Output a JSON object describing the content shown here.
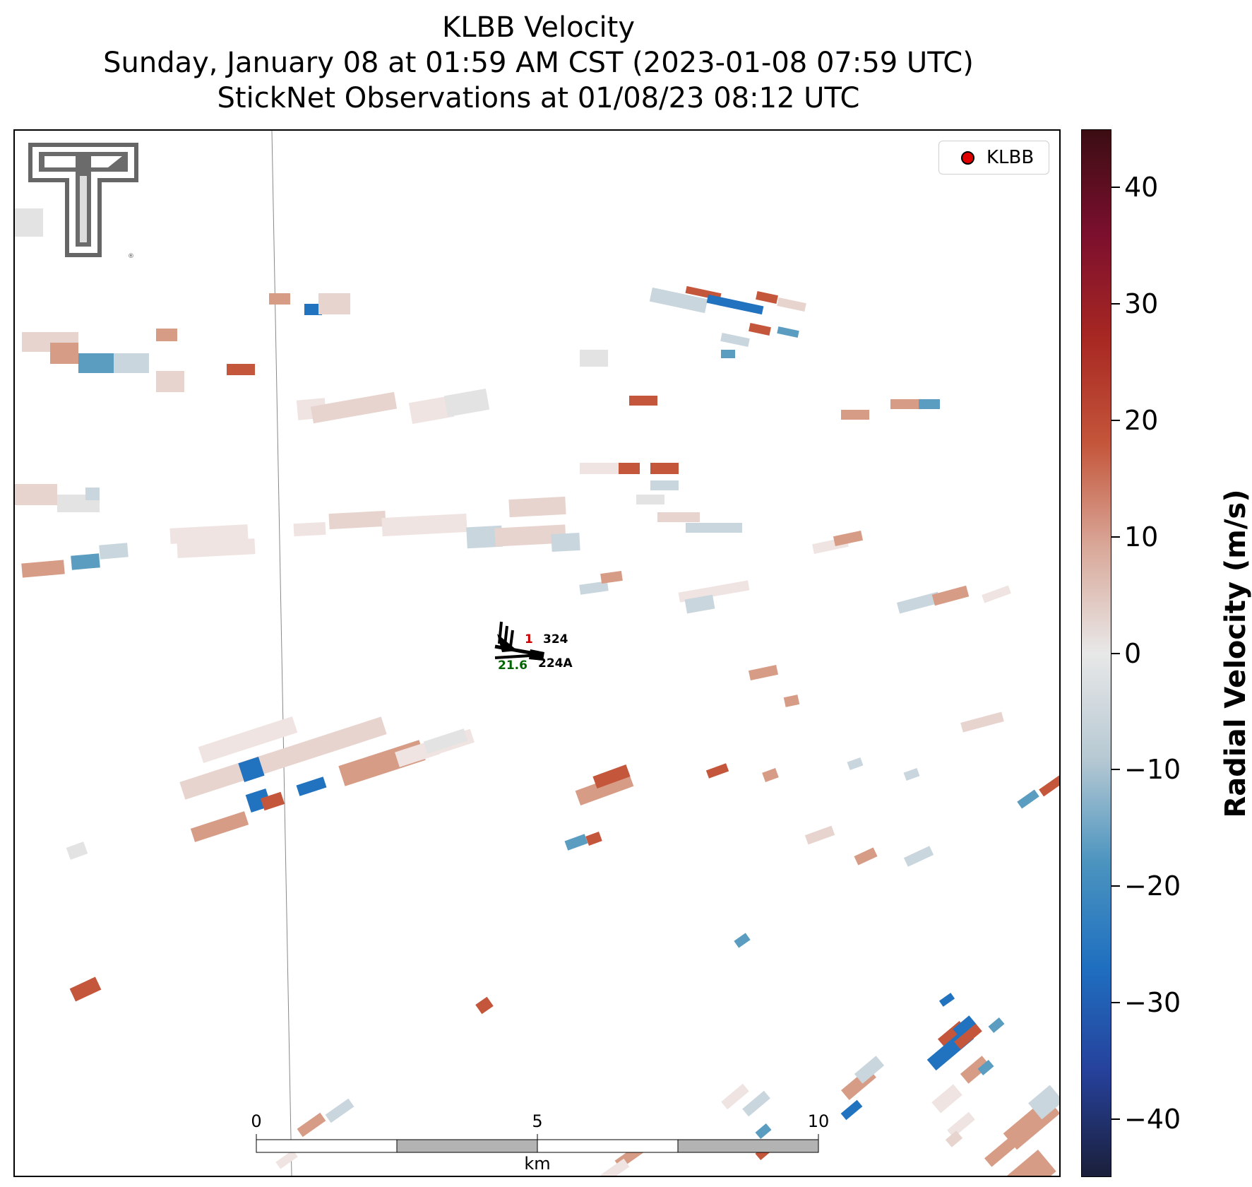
{
  "title": {
    "line1": "KLBB Velocity",
    "line2": "Sunday, January 08 at 01:59 AM CST (2023-01-08 07:59 UTC)",
    "line3": "StickNet Observations at 01/08/23 08:12 UTC"
  },
  "logo": {
    "name": "Texas Tech Double T",
    "mark": "®"
  },
  "legend": {
    "label": "KLBB",
    "marker_color": "#e00000"
  },
  "colorbar": {
    "title": "Radial Velocity (m/s)",
    "range": [
      -45,
      45
    ],
    "ticks": [
      "40",
      "30",
      "20",
      "10",
      "0",
      "−10",
      "−20",
      "−30",
      "−40"
    ],
    "colors": [
      "#1b1f3a",
      "#26419b",
      "#1f6fc0",
      "#4b94bf",
      "#b7c9d3",
      "#e8e8e8",
      "#d9a99a",
      "#c4563b",
      "#a82822",
      "#7c0f2e",
      "#3b0d13"
    ]
  },
  "stations": [
    {
      "id": "324",
      "value_red": "1"
    },
    {
      "id": "224A",
      "value_green": "21.6"
    }
  ],
  "scalebar": {
    "ticks": [
      "0",
      "5",
      "10"
    ],
    "unit": "km"
  }
}
